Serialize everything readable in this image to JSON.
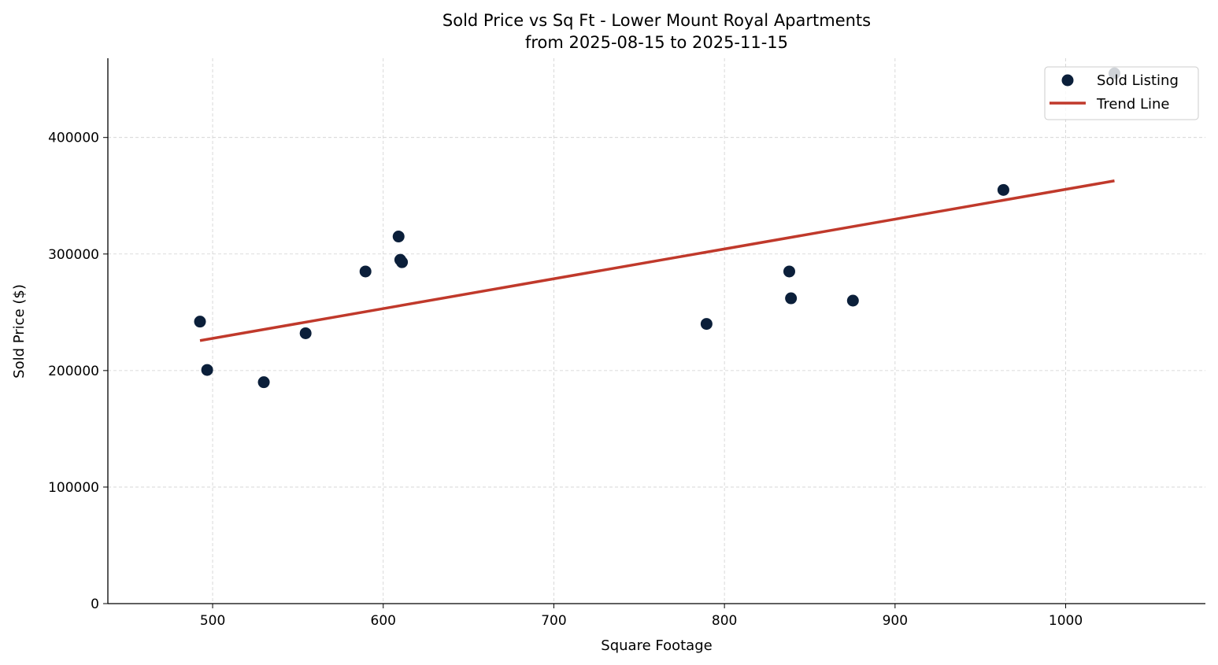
{
  "chart_data": {
    "type": "scatter",
    "title": "Sold Price vs Sq Ft - Lower Mount Royal Apartments",
    "subtitle": "from 2025-08-15 to 2025-11-15",
    "xlabel": "Square Footage",
    "ylabel": "Sold Price ($)",
    "xlim": [
      438.6,
      1081.9
    ],
    "ylim": [
      0,
      468000
    ],
    "xticks": [
      500,
      600,
      700,
      800,
      900,
      1000
    ],
    "yticks": [
      0,
      100000,
      200000,
      300000,
      400000
    ],
    "grid": true,
    "legend_position": "top-right",
    "series": [
      {
        "name": "Sold Listing",
        "type": "scatter",
        "color": "#0b1f3a",
        "points": [
          [
            492.6,
            242000
          ],
          [
            496.8,
            200500
          ],
          [
            530,
            190000
          ],
          [
            554.5,
            232000
          ],
          [
            589.6,
            285000
          ],
          [
            609,
            315000
          ],
          [
            610,
            295000
          ],
          [
            611,
            293000
          ],
          [
            789.5,
            240000
          ],
          [
            838,
            285000
          ],
          [
            839,
            262000
          ],
          [
            875.3,
            260000
          ],
          [
            963.5,
            355000
          ],
          [
            1028.6,
            455000
          ]
        ]
      },
      {
        "name": "Trend Line",
        "type": "line",
        "color": "#c0392b",
        "points": [
          [
            492.6,
            225700
          ],
          [
            1028.6,
            362800
          ]
        ]
      }
    ]
  }
}
